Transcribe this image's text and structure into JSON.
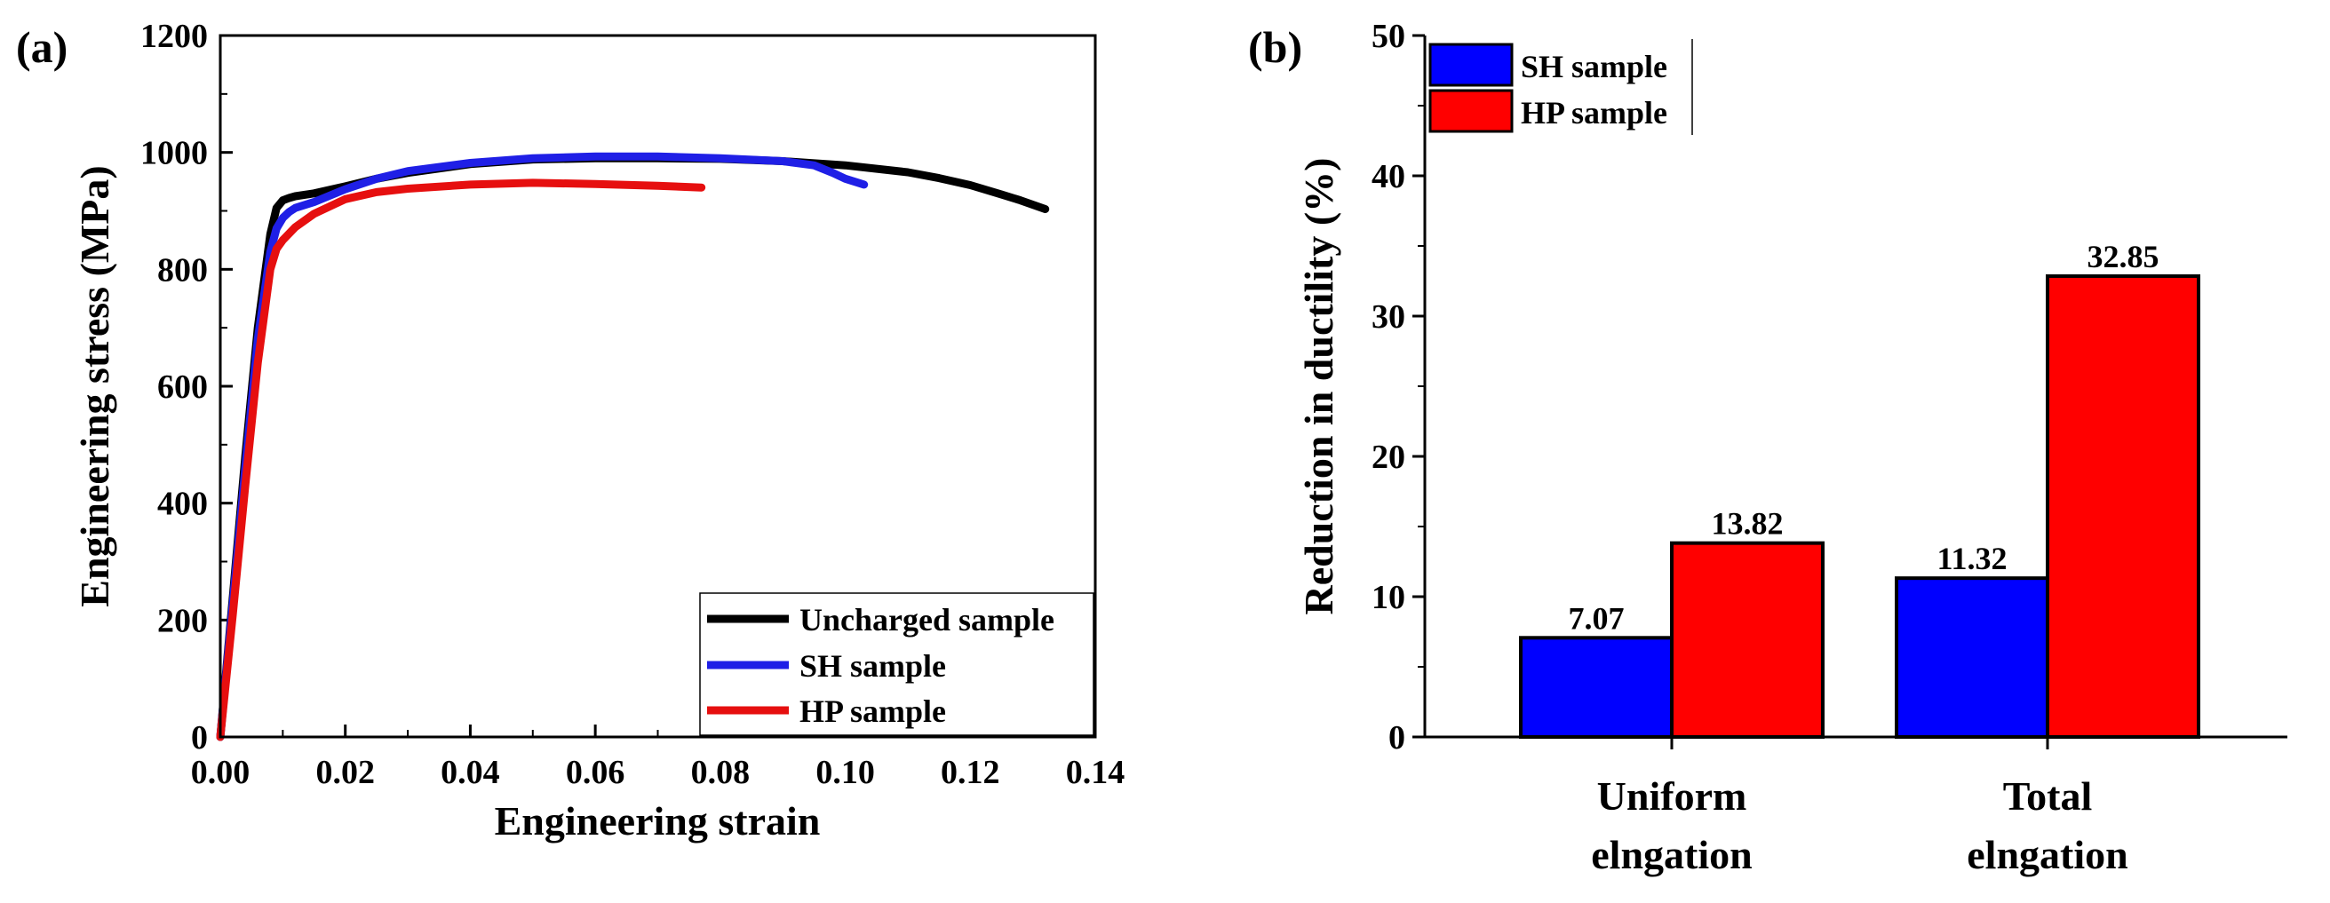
{
  "chart_data": [
    {
      "panel_label": "(a)",
      "type": "line",
      "xlabel": "Engineering strain",
      "ylabel": "Engineering stress (MPa)",
      "xlim": [
        0,
        0.14
      ],
      "ylim": [
        0,
        1200
      ],
      "xticks": [
        "0.00",
        "0.02",
        "0.04",
        "0.06",
        "0.08",
        "0.10",
        "0.12",
        "0.14"
      ],
      "yticks": [
        "0",
        "200",
        "400",
        "600",
        "800",
        "1000",
        "1200"
      ],
      "legend_position": "bottom-right",
      "series": [
        {
          "name": "Uncharged sample",
          "color": "#000000",
          "x": [
            0,
            0.002,
            0.004,
            0.006,
            0.008,
            0.009,
            0.01,
            0.011,
            0.012,
            0.015,
            0.02,
            0.025,
            0.03,
            0.04,
            0.05,
            0.06,
            0.07,
            0.08,
            0.09,
            0.1,
            0.11,
            0.115,
            0.12,
            0.125,
            0.128,
            0.132
          ],
          "y": [
            0,
            240,
            480,
            700,
            860,
            905,
            918,
            922,
            925,
            930,
            942,
            955,
            965,
            980,
            988,
            990,
            990,
            989,
            985,
            978,
            966,
            956,
            944,
            928,
            918,
            903
          ]
        },
        {
          "name": "SH sample",
          "color": "#1f1fe6",
          "x": [
            0,
            0.002,
            0.004,
            0.006,
            0.008,
            0.009,
            0.01,
            0.011,
            0.012,
            0.015,
            0.02,
            0.025,
            0.03,
            0.04,
            0.05,
            0.06,
            0.07,
            0.08,
            0.09,
            0.095,
            0.098,
            0.1,
            0.103
          ],
          "y": [
            0,
            230,
            460,
            680,
            830,
            870,
            888,
            898,
            905,
            915,
            937,
            955,
            968,
            982,
            990,
            993,
            993,
            990,
            985,
            978,
            965,
            955,
            945
          ]
        },
        {
          "name": "HP sample",
          "color": "#e60f0f",
          "x": [
            0,
            0.002,
            0.004,
            0.006,
            0.008,
            0.009,
            0.01,
            0.012,
            0.015,
            0.02,
            0.025,
            0.03,
            0.04,
            0.05,
            0.06,
            0.07,
            0.077
          ],
          "y": [
            0,
            210,
            430,
            640,
            800,
            835,
            850,
            872,
            895,
            920,
            932,
            938,
            945,
            948,
            946,
            943,
            940
          ]
        }
      ]
    },
    {
      "panel_label": "(b)",
      "type": "bar",
      "xlabel": "",
      "ylabel": "Reduction in ductility (%)",
      "ylim": [
        0,
        50
      ],
      "yticks": [
        "0",
        "10",
        "20",
        "30",
        "40",
        "50"
      ],
      "categories": [
        {
          "line1": "Uniform",
          "line2": "elngation"
        },
        {
          "line1": "Total",
          "line2": "elngation"
        }
      ],
      "legend_position": "top-left",
      "series": [
        {
          "name": "SH sample",
          "color": "#0000ff",
          "values": [
            7.07,
            11.32
          ],
          "labels": [
            "7.07",
            "11.32"
          ]
        },
        {
          "name": "HP sample",
          "color": "#ff0000",
          "values": [
            13.82,
            32.85
          ],
          "labels": [
            "13.82",
            "32.85"
          ]
        }
      ]
    }
  ]
}
